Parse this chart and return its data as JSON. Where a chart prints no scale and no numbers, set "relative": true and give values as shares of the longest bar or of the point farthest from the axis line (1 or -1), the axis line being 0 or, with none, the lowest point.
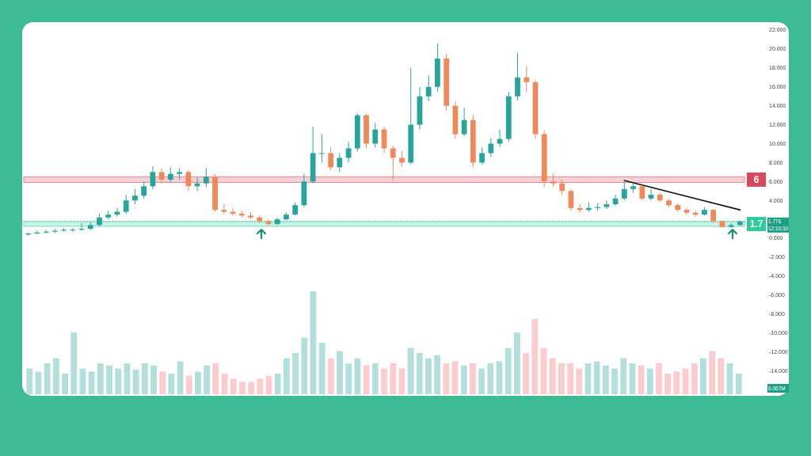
{
  "chart_data": [
    {
      "type": "candlestick",
      "categories": [
        null,
        null,
        null,
        null,
        null,
        null,
        null,
        null,
        null,
        null,
        null,
        null,
        null,
        null,
        null,
        null,
        null,
        null,
        null,
        null,
        null,
        null,
        null,
        null,
        null,
        null,
        null,
        null,
        null,
        null,
        null,
        null,
        null,
        null,
        null,
        null,
        null,
        null,
        null,
        null,
        null,
        null,
        null,
        null,
        null,
        null,
        null,
        null,
        null,
        null,
        null,
        null,
        null,
        null,
        null,
        null,
        null,
        null,
        null,
        null,
        null,
        null,
        null,
        null,
        null,
        null,
        null,
        null,
        null,
        null,
        null,
        null,
        null,
        null,
        null,
        null,
        null,
        null,
        null,
        null,
        null
      ],
      "ohlc": [
        [
          0.4,
          0.6,
          0.3,
          0.5
        ],
        [
          0.5,
          0.8,
          0.4,
          0.6
        ],
        [
          0.6,
          0.9,
          0.5,
          0.7
        ],
        [
          0.7,
          1.0,
          0.6,
          0.8
        ],
        [
          0.8,
          1.1,
          0.7,
          0.9
        ],
        [
          0.9,
          1.1,
          0.7,
          0.9
        ],
        [
          0.9,
          1.6,
          0.8,
          1.0
        ],
        [
          1.0,
          1.7,
          0.9,
          1.4
        ],
        [
          1.4,
          2.6,
          1.3,
          2.2
        ],
        [
          2.2,
          2.9,
          2.0,
          2.5
        ],
        [
          2.5,
          3.2,
          2.3,
          2.8
        ],
        [
          2.8,
          4.6,
          2.6,
          4.0
        ],
        [
          4.0,
          5.2,
          3.6,
          4.5
        ],
        [
          4.5,
          6.0,
          4.2,
          5.5
        ],
        [
          5.5,
          7.6,
          5.2,
          7.0
        ],
        [
          7.0,
          7.4,
          5.8,
          6.2
        ],
        [
          6.2,
          7.5,
          5.9,
          6.8
        ],
        [
          6.8,
          7.4,
          6.2,
          7.0
        ],
        [
          7.0,
          7.2,
          5.0,
          5.5
        ],
        [
          5.5,
          6.4,
          5.0,
          5.8
        ],
        [
          5.8,
          7.4,
          5.4,
          6.5
        ],
        [
          6.5,
          6.8,
          2.8,
          3.0
        ],
        [
          3.0,
          3.6,
          2.6,
          2.8
        ],
        [
          2.8,
          3.2,
          2.4,
          2.6
        ],
        [
          2.6,
          2.9,
          2.2,
          2.4
        ],
        [
          2.4,
          2.8,
          2.0,
          2.2
        ],
        [
          2.2,
          2.4,
          1.6,
          1.8
        ],
        [
          1.8,
          2.0,
          1.4,
          1.5
        ],
        [
          1.5,
          2.2,
          1.4,
          2.0
        ],
        [
          2.0,
          2.7,
          1.9,
          2.5
        ],
        [
          2.5,
          3.8,
          2.4,
          3.5
        ],
        [
          3.5,
          6.8,
          3.3,
          6.0
        ],
        [
          6.0,
          11.8,
          5.8,
          9.0
        ],
        [
          9.0,
          11.0,
          8.0,
          9.0
        ],
        [
          9.0,
          9.6,
          7.2,
          7.5
        ],
        [
          7.5,
          9.0,
          7.0,
          8.5
        ],
        [
          8.5,
          10.2,
          8.0,
          9.5
        ],
        [
          9.5,
          13.2,
          9.2,
          13.0
        ],
        [
          13.0,
          13.2,
          9.5,
          10.0
        ],
        [
          10.0,
          12.2,
          9.6,
          11.5
        ],
        [
          11.5,
          11.8,
          9.0,
          9.5
        ],
        [
          9.5,
          9.8,
          6.1,
          8.5
        ],
        [
          8.5,
          9.2,
          7.6,
          8.0
        ],
        [
          8.0,
          18.0,
          7.8,
          12.0
        ],
        [
          12.0,
          16.0,
          11.5,
          15.0
        ],
        [
          15.0,
          17.2,
          14.5,
          16.0
        ],
        [
          16.0,
          20.6,
          15.5,
          19.0
        ],
        [
          19.0,
          19.5,
          13.5,
          14.0
        ],
        [
          14.0,
          14.5,
          10.5,
          11.0
        ],
        [
          11.0,
          13.8,
          10.8,
          12.5
        ],
        [
          12.5,
          13.0,
          7.5,
          8.0
        ],
        [
          8.0,
          9.6,
          7.8,
          9.0
        ],
        [
          9.0,
          10.6,
          8.6,
          10.0
        ],
        [
          10.0,
          11.5,
          9.6,
          10.5
        ],
        [
          10.5,
          15.5,
          10.2,
          15.0
        ],
        [
          15.0,
          19.6,
          14.6,
          17.0
        ],
        [
          17.0,
          18.2,
          15.5,
          16.5
        ],
        [
          16.5,
          16.8,
          10.5,
          11.0
        ],
        [
          11.0,
          11.4,
          5.4,
          6.0
        ],
        [
          6.0,
          6.8,
          5.4,
          5.8
        ],
        [
          5.8,
          6.2,
          4.6,
          5.0
        ],
        [
          5.0,
          5.2,
          2.9,
          3.2
        ],
        [
          3.2,
          3.6,
          2.7,
          3.0
        ],
        [
          3.0,
          3.8,
          2.8,
          3.2
        ],
        [
          3.2,
          3.7,
          2.9,
          3.3
        ],
        [
          3.3,
          4.0,
          3.1,
          3.6
        ],
        [
          3.6,
          4.6,
          3.4,
          4.2
        ],
        [
          4.2,
          6.1,
          4.0,
          5.2
        ],
        [
          5.2,
          5.8,
          4.8,
          5.5
        ],
        [
          5.5,
          5.6,
          4.0,
          4.2
        ],
        [
          4.2,
          5.2,
          4.0,
          4.6
        ],
        [
          4.6,
          4.8,
          3.8,
          4.0
        ],
        [
          4.0,
          4.2,
          3.3,
          3.5
        ],
        [
          3.5,
          3.7,
          2.8,
          3.0
        ],
        [
          3.0,
          3.2,
          2.5,
          2.7
        ],
        [
          2.7,
          2.9,
          2.3,
          2.5
        ],
        [
          2.5,
          3.3,
          2.4,
          3.0
        ],
        [
          3.0,
          3.1,
          1.6,
          1.8
        ],
        [
          1.8,
          1.9,
          1.1,
          1.2
        ],
        [
          1.2,
          1.6,
          1.1,
          1.4
        ],
        [
          1.4,
          1.9,
          1.3,
          1.776
        ]
      ],
      "series": [
        {
          "type": "line",
          "values": [
            null,
            null,
            null,
            null,
            null,
            null,
            null,
            null,
            null,
            null,
            null,
            null,
            null,
            null,
            null,
            null,
            null,
            null,
            null,
            null,
            null,
            null,
            null,
            null,
            null,
            null,
            null,
            null,
            null,
            null,
            null,
            null,
            null,
            null,
            null,
            null,
            null,
            null,
            null,
            null,
            null,
            null,
            null,
            null,
            null,
            null,
            null,
            null,
            null,
            null,
            null,
            null,
            null,
            null,
            null,
            null,
            null,
            null,
            null,
            null,
            null,
            null,
            null,
            null,
            null,
            null,
            null,
            6.1,
            null,
            null,
            null,
            null,
            null,
            null,
            null,
            null,
            null,
            null,
            null,
            null,
            3.0
          ],
          "color": "#111111"
        }
      ],
      "ylim": [
        -16.65,
        22.84
      ],
      "yticks": [
        {
          "value": 22,
          "label": "22.000"
        },
        {
          "value": 20,
          "label": "20.000"
        },
        {
          "value": 18,
          "label": "18.000"
        },
        {
          "value": 16,
          "label": "16.000"
        },
        {
          "value": 14,
          "label": "14.000"
        },
        {
          "value": 12,
          "label": "12.000"
        },
        {
          "value": 10,
          "label": "10.000"
        },
        {
          "value": 8,
          "label": "8.000"
        },
        {
          "value": 6,
          "label": "6.000"
        },
        {
          "value": 4,
          "label": "4.000"
        },
        {
          "value": 0,
          "label": "0.000"
        },
        {
          "value": -2,
          "label": "-2.000"
        },
        {
          "value": -4,
          "label": "-4.000"
        },
        {
          "value": -6,
          "label": "-6.000"
        },
        {
          "value": -8,
          "label": "-8.000"
        },
        {
          "value": -10,
          "label": "-10.000"
        },
        {
          "value": -12,
          "label": "-12.000"
        },
        {
          "value": -14,
          "label": "-14.000"
        }
      ],
      "tick_labels": "y",
      "bands": [
        {
          "axis": "y",
          "from": 5.9,
          "to": 6.5,
          "label": "6",
          "color": "#d9475a"
        },
        {
          "axis": "y",
          "from": 1.26,
          "to": 1.76,
          "label": "1.7",
          "color": "#2ecc9a"
        }
      ],
      "ref_lines": [
        {
          "axis": "y",
          "value": 1.776,
          "label": "1.776",
          "color": "#1e9e86",
          "line_style": "dotted"
        }
      ],
      "annotations": [
        "12:10:30"
      ]
    },
    {
      "type": "bar",
      "relative": true,
      "categories": [
        null,
        null,
        null,
        null,
        null,
        null,
        null,
        null,
        null,
        null,
        null,
        null,
        null,
        null,
        null,
        null,
        null,
        null,
        null,
        null,
        null,
        null,
        null,
        null,
        null,
        null,
        null,
        null,
        null,
        null,
        null,
        null,
        null,
        null,
        null,
        null,
        null,
        null,
        null,
        null,
        null,
        null,
        null,
        null,
        null,
        null,
        null,
        null,
        null,
        null,
        null,
        null,
        null,
        null,
        null,
        null,
        null,
        null,
        null,
        null,
        null,
        null,
        null,
        null,
        null,
        null,
        null,
        null,
        null,
        null,
        null,
        null,
        null,
        null,
        null,
        null,
        null,
        null,
        null,
        null,
        null
      ],
      "values": [
        0.25,
        0.22,
        0.3,
        0.35,
        0.2,
        0.6,
        0.25,
        0.22,
        0.3,
        0.28,
        0.25,
        0.3,
        0.24,
        0.3,
        0.28,
        0.22,
        0.2,
        0.32,
        0.18,
        0.22,
        0.28,
        0.3,
        0.2,
        0.15,
        0.12,
        0.12,
        0.15,
        0.18,
        0.2,
        0.35,
        0.4,
        0.55,
        1.0,
        0.5,
        0.35,
        0.42,
        0.3,
        0.35,
        0.28,
        0.3,
        0.25,
        0.3,
        0.25,
        0.45,
        0.4,
        0.35,
        0.38,
        0.3,
        0.32,
        0.28,
        0.3,
        0.25,
        0.3,
        0.32,
        0.45,
        0.6,
        0.4,
        0.73,
        0.45,
        0.35,
        0.3,
        0.3,
        0.25,
        0.3,
        0.32,
        0.28,
        0.25,
        0.35,
        0.3,
        0.28,
        0.25,
        0.3,
        0.2,
        0.22,
        0.25,
        0.3,
        0.35,
        0.42,
        0.35,
        0.3,
        0.2
      ],
      "colors": [
        "#b2dfdb",
        "#b2dfdb",
        "#b2dfdb",
        "#b2dfdb",
        "#b2dfdb",
        "#b2dfdb",
        "#b2dfdb",
        "#b2dfdb",
        "#b2dfdb",
        "#b2dfdb",
        "#b2dfdb",
        "#b2dfdb",
        "#b2dfdb",
        "#b2dfdb",
        "#b2dfdb",
        "#fccbcd",
        "#b2dfdb",
        "#b2dfdb",
        "#fccbcd",
        "#b2dfdb",
        "#b2dfdb",
        "#fccbcd",
        "#fccbcd",
        "#fccbcd",
        "#fccbcd",
        "#fccbcd",
        "#fccbcd",
        "#fccbcd",
        "#b2dfdb",
        "#b2dfdb",
        "#b2dfdb",
        "#b2dfdb",
        "#b2dfdb",
        "#b2dfdb",
        "#fccbcd",
        "#b2dfdb",
        "#b2dfdb",
        "#b2dfdb",
        "#fccbcd",
        "#b2dfdb",
        "#fccbcd",
        "#fccbcd",
        "#fccbcd",
        "#b2dfdb",
        "#b2dfdb",
        "#b2dfdb",
        "#b2dfdb",
        "#fccbcd",
        "#fccbcd",
        "#b2dfdb",
        "#fccbcd",
        "#b2dfdb",
        "#b2dfdb",
        "#b2dfdb",
        "#b2dfdb",
        "#b2dfdb",
        "#fccbcd",
        "#fccbcd",
        "#fccbcd",
        "#fccbcd",
        "#fccbcd",
        "#fccbcd",
        "#fccbcd",
        "#b2dfdb",
        "#b2dfdb",
        "#b2dfdb",
        "#b2dfdb",
        "#b2dfdb",
        "#b2dfdb",
        "#fccbcd",
        "#b2dfdb",
        "#fccbcd",
        "#fccbcd",
        "#fccbcd",
        "#fccbcd",
        "#fccbcd",
        "#b2dfdb",
        "#fccbcd",
        "#fccbcd",
        "#b2dfdb",
        "#b2dfdb"
      ],
      "annotations": [
        "6.067M"
      ]
    }
  ]
}
